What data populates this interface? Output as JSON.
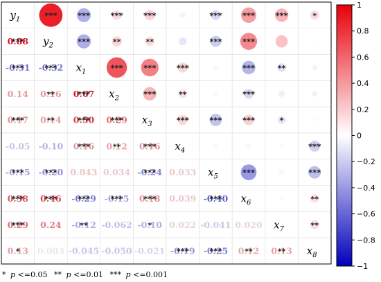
{
  "chart_data": {
    "type": "heatmap",
    "variables": [
      {
        "base": "y",
        "sub": "1"
      },
      {
        "base": "y",
        "sub": "2"
      },
      {
        "base": "x",
        "sub": "1"
      },
      {
        "base": "x",
        "sub": "2"
      },
      {
        "base": "x",
        "sub": "3"
      },
      {
        "base": "x",
        "sub": "4"
      },
      {
        "base": "x",
        "sub": "5"
      },
      {
        "base": "x",
        "sub": "6"
      },
      {
        "base": "x",
        "sub": "7"
      },
      {
        "base": "x",
        "sub": "8"
      }
    ],
    "lower_labels": [
      [],
      [
        "0.88"
      ],
      [
        "-0.31",
        "-0.32"
      ],
      [
        "0.14",
        "0.16",
        "0.67"
      ],
      [
        "0.17",
        "0.14",
        "0.50",
        "0.29"
      ],
      [
        "-0.05",
        "-0.10",
        "0.16",
        "0.12",
        "0.16"
      ],
      [
        "-0.15",
        "-0.20",
        "0.043",
        "0.034",
        "-0.24",
        "0.033"
      ],
      [
        "0.38",
        "0.46",
        "-0.29",
        "-0.15",
        "0.18",
        "0.039",
        "-0.40"
      ],
      [
        "0.29",
        "0.24",
        "-0.12",
        "-0.062",
        "-0.10",
        "0.022",
        "-0.041",
        "0.020"
      ],
      [
        "0.13",
        "0.003",
        "-0.045",
        "-0.050",
        "-0.021",
        "-0.19",
        "-0.25",
        "0.12",
        "0.13"
      ]
    ],
    "stars": [
      [
        "",
        "***",
        "***",
        "***",
        "***",
        "",
        "***",
        "***",
        "***",
        "*"
      ],
      [
        "***",
        "",
        "***",
        "**",
        "**",
        "",
        "***",
        "***",
        "",
        ""
      ],
      [
        "***",
        "***",
        "",
        "***",
        "***",
        "***",
        "",
        "***",
        "**",
        ""
      ],
      [
        "",
        "**",
        "***",
        "",
        "***",
        "**",
        "",
        "***",
        "",
        ""
      ],
      [
        "***",
        "**",
        "***",
        "***",
        "",
        "***",
        "***",
        "***",
        "*",
        ""
      ],
      [
        "",
        "",
        "***",
        "**",
        "***",
        "",
        "",
        "",
        "",
        "***"
      ],
      [
        "***",
        "***",
        "",
        "",
        "***",
        "",
        "",
        "***",
        "",
        "***"
      ],
      [
        "***",
        "***",
        "***",
        "***",
        "***",
        "",
        "***",
        "",
        "",
        "**"
      ],
      [
        "***",
        "",
        "**",
        "",
        "*",
        "",
        "",
        "",
        "",
        "**"
      ],
      [
        "*",
        "",
        "",
        "",
        "",
        "***",
        "***",
        "**",
        "**",
        ""
      ]
    ],
    "colorbar": {
      "range": [
        -1,
        1
      ],
      "ticks": [
        "1",
        "0.8",
        "0.6",
        "0.4",
        "0.2",
        "0",
        "−0.2",
        "−0.4",
        "−0.6",
        "−0.8",
        "−1"
      ],
      "tick_values": [
        1,
        0.8,
        0.6,
        0.4,
        0.2,
        0,
        -0.2,
        -0.4,
        -0.6,
        -0.8,
        -1
      ],
      "high_color": "#e8000b",
      "mid_color": "#ffffff",
      "low_color": "#0000bb"
    },
    "footnote": {
      "p1": "p",
      "t1": "<=0.05",
      "p2": "p",
      "t2": "<=0.01",
      "p3": "p",
      "t3": "<=0.001",
      "s1": "*",
      "s2": "**",
      "s3": "***"
    }
  }
}
